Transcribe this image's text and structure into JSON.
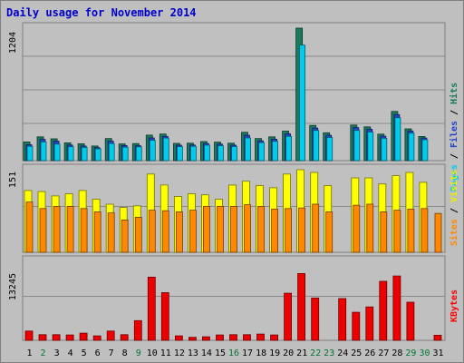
{
  "chart_data": {
    "type": "bar",
    "title": "Daily usage for November 2014",
    "categories": [
      "1",
      "2",
      "3",
      "4",
      "5",
      "6",
      "7",
      "8",
      "9",
      "10",
      "11",
      "12",
      "13",
      "14",
      "15",
      "16",
      "17",
      "18",
      "19",
      "20",
      "21",
      "22",
      "23",
      "24",
      "25",
      "26",
      "27",
      "28",
      "29",
      "30",
      "31"
    ],
    "weekend_days": [
      "2",
      "9",
      "16",
      "22",
      "23",
      "29",
      "30"
    ],
    "panels": [
      {
        "id": "hits-files-pages",
        "ymax_label": "1204",
        "ymax": 1204,
        "legend": [
          {
            "text": "Hits",
            "color": "#1a7a5e"
          },
          {
            "text": "Files",
            "color": "#2244cc"
          },
          {
            "text": "Pages",
            "color": "#00ccee"
          }
        ],
        "series": [
          {
            "name": "Hits",
            "color": "#1a7a5e",
            "values": [
              170,
              216,
              198,
              162,
              153,
              133,
              200,
              152,
              155,
              232,
              242,
              157,
              158,
              173,
              168,
              158,
              257,
              200,
              216,
              268,
              1204,
              320,
              253,
              0,
              323,
              307,
              241,
              447,
              289,
              219,
              0
            ]
          },
          {
            "name": "Files",
            "color": "#2244cc",
            "values": [
              144,
              193,
              177,
              142,
              133,
              118,
              177,
              137,
              135,
              206,
              220,
              140,
              142,
              155,
              150,
              140,
              230,
              180,
              195,
              243,
              0,
              296,
              230,
              0,
              300,
              285,
              222,
              418,
              270,
              205,
              0
            ]
          },
          {
            "name": "Pages",
            "color": "#00ccee",
            "values": [
              130,
              170,
              150,
              126,
              120,
              107,
              155,
              122,
              125,
              185,
              205,
              127,
              130,
              140,
              135,
              128,
              206,
              163,
              175,
              220,
              1050,
              275,
              210,
              0,
              275,
              260,
              203,
              390,
              250,
              190,
              0
            ]
          }
        ]
      },
      {
        "id": "visits-sites",
        "ymax_label": "151",
        "ymax": 151,
        "legend": [
          {
            "text": "Visits",
            "color": "#eeee00"
          },
          {
            "text": "Sites",
            "color": "#ff8800"
          }
        ],
        "series": [
          {
            "name": "Visits",
            "color": "#ffff00",
            "values": [
              113,
              111,
              103,
              107,
              113,
              97,
              88,
              82,
              85,
              143,
              123,
              102,
              107,
              105,
              97,
              123,
              130,
              122,
              118,
              143,
              151,
              146,
              122,
              0,
              136,
              136,
              125,
              140,
              146,
              128,
              0
            ]
          },
          {
            "name": "Sites",
            "color": "#ff8800",
            "values": [
              92,
              80,
              84,
              84,
              80,
              74,
              72,
              59,
              64,
              77,
              76,
              74,
              77,
              84,
              84,
              84,
              87,
              84,
              79,
              80,
              81,
              88,
              74,
              0,
              86,
              88,
              74,
              77,
              79,
              80,
              71
            ]
          }
        ]
      },
      {
        "id": "kbytes",
        "ymax_label": "13245",
        "ymax": 13245,
        "legend": [
          {
            "text": "KBytes",
            "color": "#ff0000"
          }
        ],
        "series": [
          {
            "name": "KBytes",
            "color": "#ee0000",
            "values": [
              1550,
              950,
              950,
              900,
              1200,
              750,
              1550,
              950,
              3300,
              10600,
              8000,
              750,
              500,
              600,
              900,
              950,
              950,
              1050,
              900,
              7900,
              11200,
              7100,
              0,
              7000,
              4700,
              5600,
              9900,
              10800,
              6400,
              0,
              850
            ]
          }
        ]
      }
    ]
  }
}
